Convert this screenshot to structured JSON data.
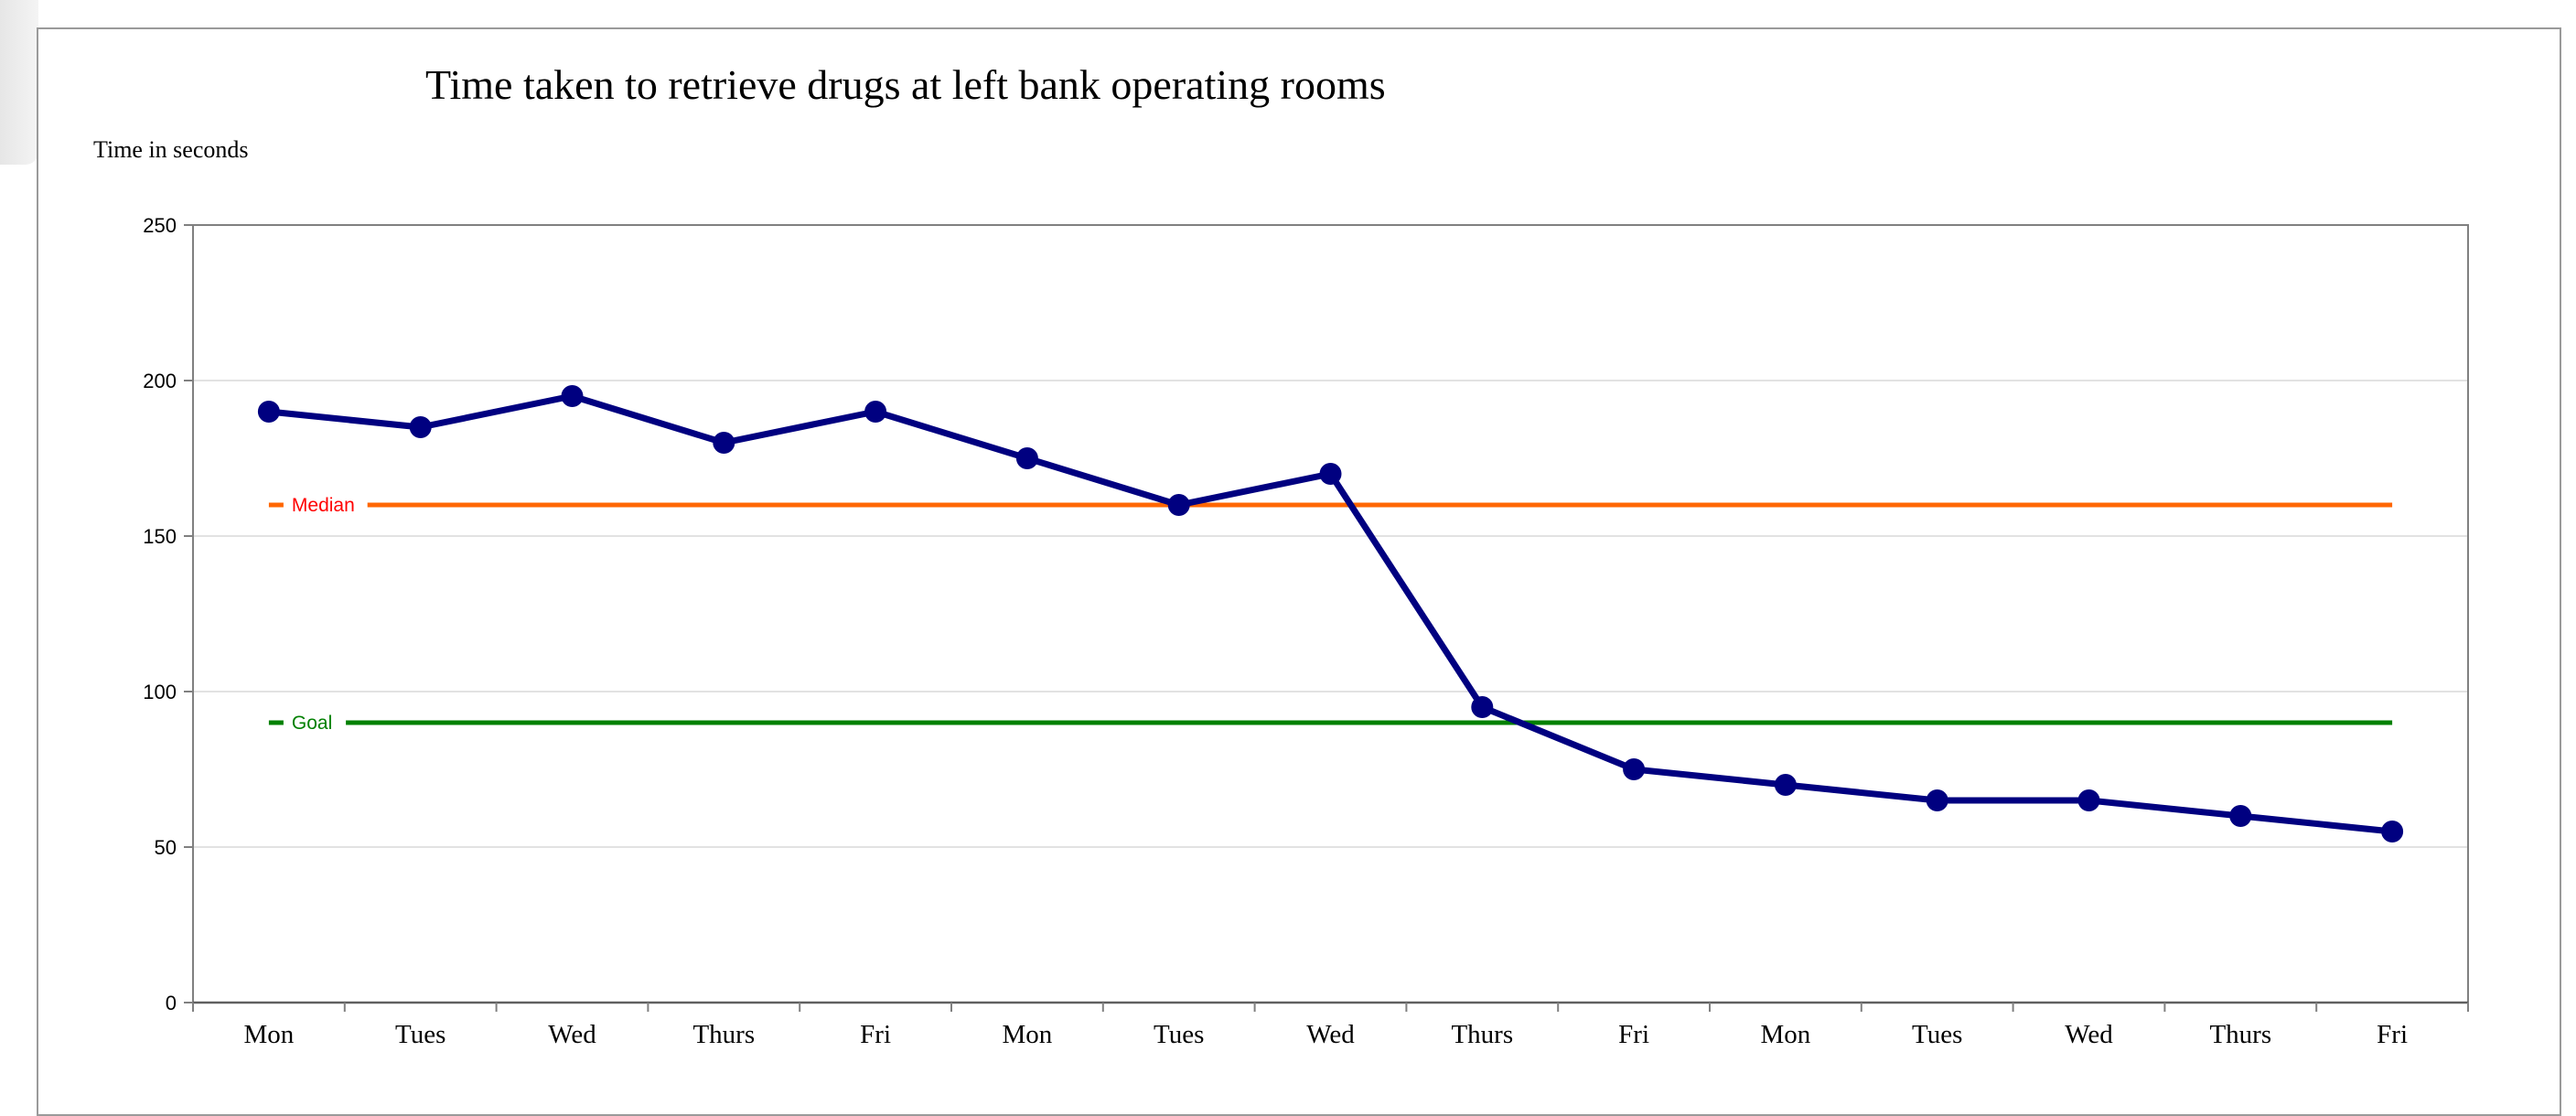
{
  "chart_data": {
    "type": "line",
    "title": "Time taken to retrieve drugs at left bank operating rooms",
    "ylabel": "Time in seconds",
    "xlabel": "",
    "ylim": [
      0,
      250
    ],
    "yticks": [
      "0",
      "50",
      "100",
      "150",
      "200",
      "250"
    ],
    "categories": [
      "Mon",
      "Tues",
      "Wed",
      "Thurs",
      "Fri",
      "Mon",
      "Tues",
      "Wed",
      "Thurs",
      "Fri",
      "Mon",
      "Tues",
      "Wed",
      "Thurs",
      "Fri"
    ],
    "series": [
      {
        "values": [
          190,
          185,
          195,
          180,
          190,
          175,
          160,
          170,
          95,
          75,
          70,
          65,
          65,
          60,
          55
        ],
        "color": "#000080"
      }
    ],
    "reference_lines": [
      {
        "name": "Median",
        "value": 160,
        "color": "#ff6600",
        "label_color": "#ff0000"
      },
      {
        "name": "Goal",
        "value": 90,
        "color": "#008000",
        "label_color": "#008000"
      }
    ],
    "grid": true,
    "grid_color": "#d9d9d9"
  }
}
